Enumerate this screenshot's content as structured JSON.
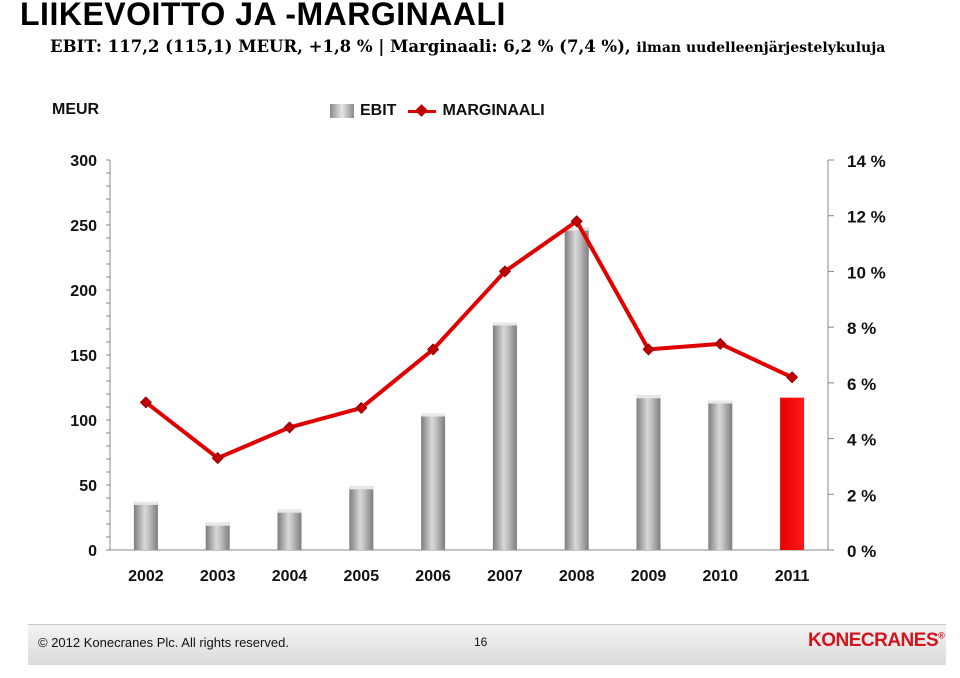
{
  "header": {
    "title": "LIIKEVOITTO JA -MARGINAALI",
    "subtitle_main": "EBIT: 117,2 (115,1) MEUR, +1,8 % | Marginaali: 6,2 % (7,4 %),",
    "subtitle_suffix": "ilman uudelleenjärjestelykuluja"
  },
  "chart_data": {
    "type": "bar",
    "ylabel": "MEUR",
    "categories": [
      "2002",
      "2003",
      "2004",
      "2005",
      "2006",
      "2007",
      "2008",
      "2009",
      "2010",
      "2011"
    ],
    "series": [
      {
        "name": "EBIT",
        "type": "bar",
        "axis": "left",
        "values": [
          37,
          21,
          31,
          49,
          105,
          175,
          248,
          119,
          115,
          117.2
        ],
        "colors": [
          "#9a9a9a",
          "#9a9a9a",
          "#9a9a9a",
          "#9a9a9a",
          "#9a9a9a",
          "#9a9a9a",
          "#9a9a9a",
          "#9a9a9a",
          "#9a9a9a",
          "#e60000"
        ]
      },
      {
        "name": "MARGINAALI",
        "type": "line",
        "axis": "right",
        "color": "#e00000",
        "values": [
          5.3,
          3.3,
          4.4,
          5.1,
          7.2,
          10.0,
          11.8,
          7.2,
          7.4,
          6.2
        ]
      }
    ],
    "left_axis": {
      "min": 0,
      "max": 300,
      "ticks": [
        "0",
        "50",
        "100",
        "150",
        "200",
        "250",
        "300"
      ]
    },
    "right_axis": {
      "min": 0,
      "max": 14,
      "ticks": [
        "0 %",
        "2 %",
        "4 %",
        "6 %",
        "8 %",
        "10 %",
        "12 %",
        "14 %"
      ]
    },
    "legend_position": "top-center",
    "grid": false
  },
  "footer": {
    "copyright": "© 2012 Konecranes Plc. All rights reserved.",
    "page": "16",
    "logo_text": "KONECRANES",
    "logo_mark": "®"
  }
}
